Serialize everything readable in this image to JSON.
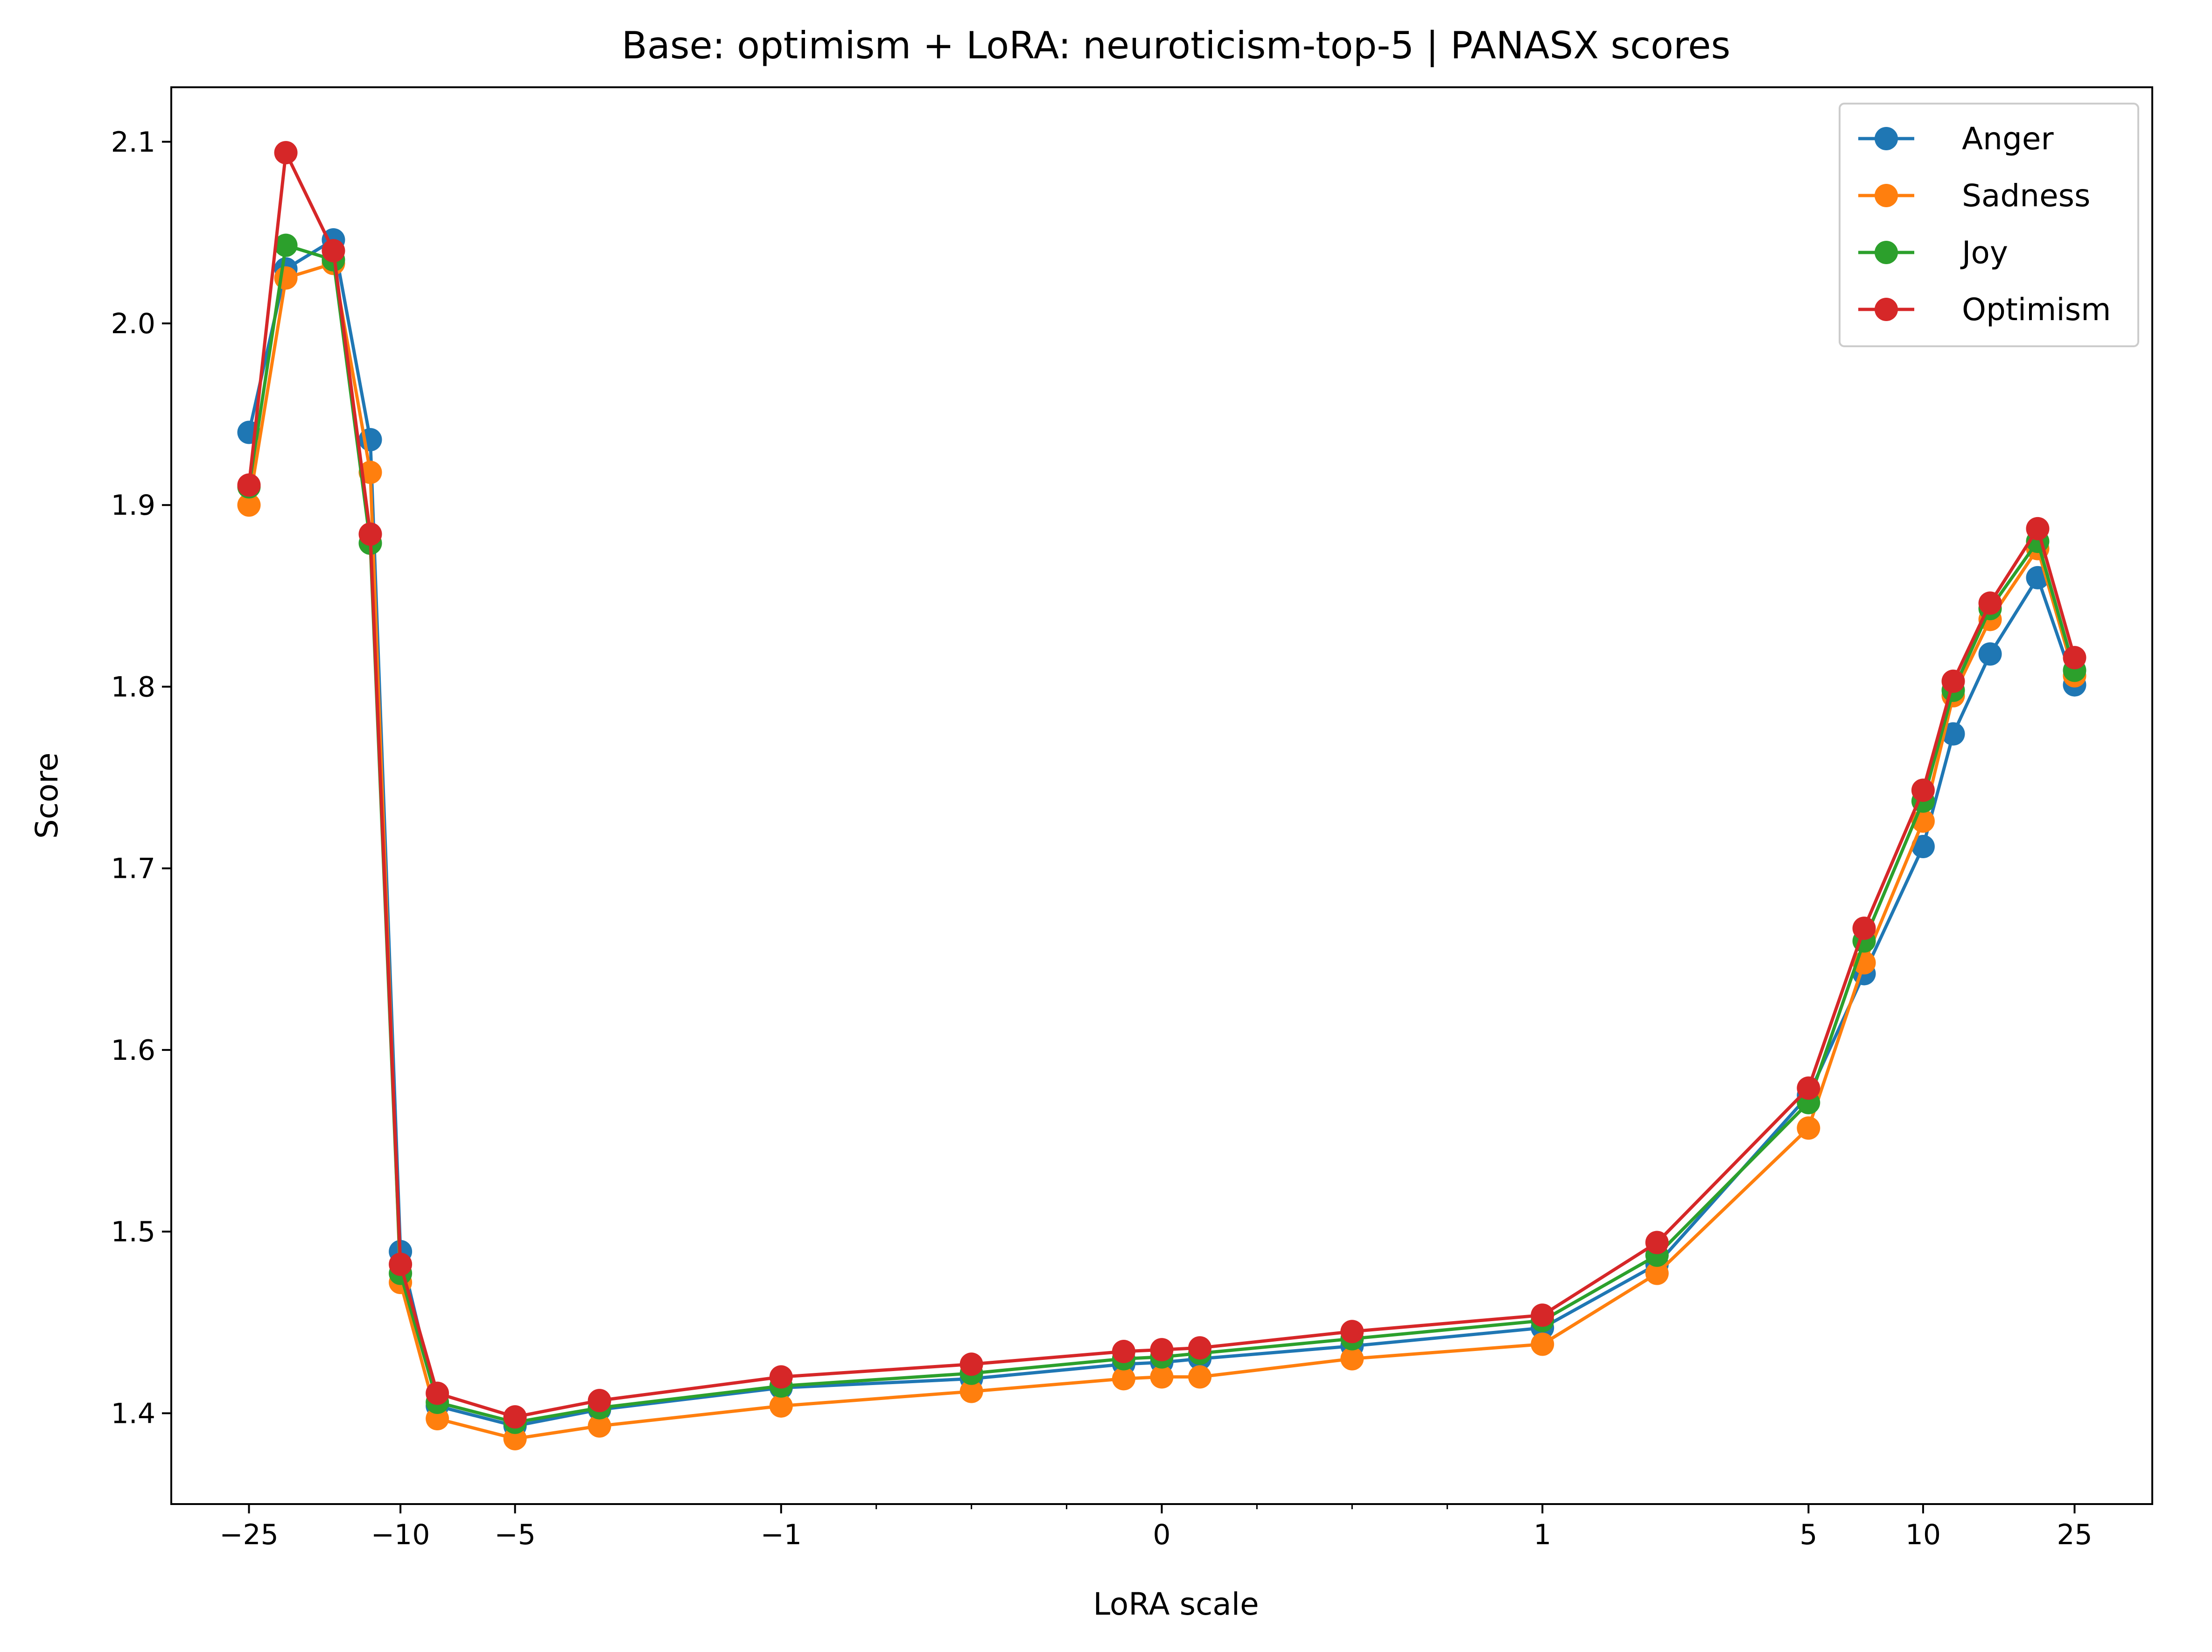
{
  "chart_data": {
    "type": "line",
    "title": "Base: optimism + LoRA: neuroticism-top-5 | PANASX scores",
    "xlabel": "LoRA scale",
    "ylabel": "Score",
    "x_scale": "symlog",
    "ylim": [
      1.35,
      2.13
    ],
    "grid": false,
    "legend_position": "top-right",
    "x_ticks": [
      {
        "value": -25,
        "label": "−25"
      },
      {
        "value": -10,
        "label": "−10"
      },
      {
        "value": -5,
        "label": "−5"
      },
      {
        "value": -1,
        "label": "−1"
      },
      {
        "value": 0,
        "label": "0"
      },
      {
        "value": 1,
        "label": "1"
      },
      {
        "value": 5,
        "label": "5"
      },
      {
        "value": 10,
        "label": "10"
      },
      {
        "value": 25,
        "label": "25"
      }
    ],
    "y_ticks": [
      {
        "value": 1.4,
        "label": "1.4"
      },
      {
        "value": 1.5,
        "label": "1.5"
      },
      {
        "value": 1.6,
        "label": "1.6"
      },
      {
        "value": 1.7,
        "label": "1.7"
      },
      {
        "value": 1.8,
        "label": "1.8"
      },
      {
        "value": 1.9,
        "label": "1.9"
      },
      {
        "value": 2.0,
        "label": "2.0"
      },
      {
        "value": 2.1,
        "label": "2.1"
      }
    ],
    "x": [
      -25,
      -20,
      -15,
      -12,
      -10,
      -8,
      -5,
      -3,
      -1,
      -0.5,
      -0.1,
      0,
      0.1,
      0.5,
      1,
      2,
      5,
      7,
      10,
      12,
      15,
      20,
      25
    ],
    "series": [
      {
        "name": "Anger",
        "color": "#1f77b4",
        "values": [
          1.94,
          2.03,
          2.046,
          1.936,
          1.489,
          1.404,
          1.393,
          1.402,
          1.414,
          1.419,
          1.427,
          1.428,
          1.43,
          1.437,
          1.447,
          1.482,
          1.575,
          1.642,
          1.712,
          1.774,
          1.818,
          1.86,
          1.801
        ]
      },
      {
        "name": "Sadness",
        "color": "#ff7f0e",
        "values": [
          1.9,
          2.025,
          2.033,
          1.918,
          1.472,
          1.397,
          1.386,
          1.393,
          1.404,
          1.412,
          1.419,
          1.42,
          1.42,
          1.43,
          1.438,
          1.477,
          1.557,
          1.648,
          1.726,
          1.795,
          1.837,
          1.876,
          1.806
        ]
      },
      {
        "name": "Joy",
        "color": "#2ca02c",
        "values": [
          1.91,
          2.043,
          2.035,
          1.879,
          1.477,
          1.406,
          1.395,
          1.403,
          1.415,
          1.422,
          1.43,
          1.431,
          1.433,
          1.441,
          1.451,
          1.487,
          1.571,
          1.66,
          1.737,
          1.798,
          1.843,
          1.88,
          1.809
        ]
      },
      {
        "name": "Optimism",
        "color": "#d62728",
        "values": [
          1.911,
          2.094,
          2.04,
          1.884,
          1.482,
          1.411,
          1.398,
          1.407,
          1.42,
          1.427,
          1.434,
          1.435,
          1.436,
          1.445,
          1.454,
          1.494,
          1.579,
          1.667,
          1.743,
          1.803,
          1.846,
          1.887,
          1.816
        ]
      }
    ]
  }
}
